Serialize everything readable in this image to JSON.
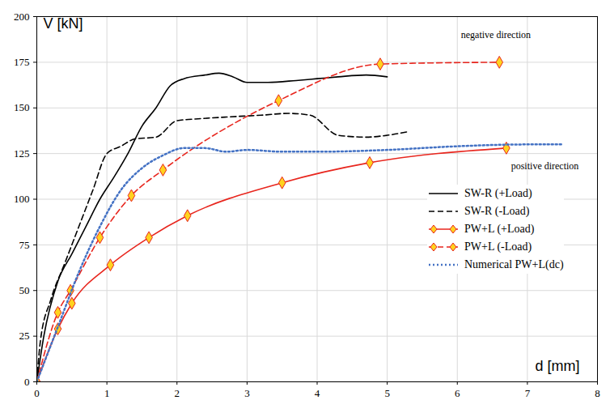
{
  "chart_data": {
    "type": "line",
    "x_label": "d [mm]",
    "y_label": "V [kN]",
    "xlim": [
      0,
      8
    ],
    "xticks": [
      0,
      1,
      2,
      3,
      4,
      5,
      6,
      7,
      8
    ],
    "ylim": [
      0,
      200
    ],
    "yticks": [
      0,
      25,
      50,
      75,
      100,
      125,
      150,
      175,
      200
    ],
    "grid": true,
    "legend": "right",
    "annotations": [
      {
        "text": "negative direction",
        "x": 6.55,
        "y": 190
      },
      {
        "text": "positive direction",
        "x": 7.25,
        "y": 118
      }
    ],
    "series": [
      {
        "name": "SW-R (+Load)",
        "color": "#000000",
        "line_style": "solid",
        "x": [
          0,
          0.1,
          0.3,
          0.5,
          0.7,
          0.9,
          1.1,
          1.3,
          1.5,
          1.7,
          1.9,
          2.1,
          2.4,
          2.6,
          2.8,
          3.0,
          3.3,
          3.7,
          4.0,
          4.3,
          4.7,
          5.0
        ],
        "values": [
          0,
          25,
          55,
          70,
          85,
          100,
          112,
          125,
          140,
          150,
          162,
          166,
          168,
          169,
          167,
          164,
          164,
          165,
          166,
          167,
          168,
          167
        ]
      },
      {
        "name": "SW-R (-Load)",
        "color": "#000000",
        "line_style": "dashed",
        "x": [
          0,
          0.05,
          0.2,
          0.4,
          0.6,
          0.8,
          1.0,
          1.2,
          1.4,
          1.7,
          2.0,
          2.3,
          2.7,
          3.2,
          3.6,
          3.9,
          4.3,
          4.7,
          5.0,
          5.3
        ],
        "values": [
          0,
          22,
          45,
          65,
          85,
          105,
          125,
          129,
          133,
          134,
          143,
          144,
          145,
          146,
          147,
          146,
          135,
          134,
          135,
          137
        ]
      },
      {
        "name": "PW+L (+Load)",
        "color": "#e8261e",
        "line_style": "solid",
        "marker": "diamond",
        "x": [
          0,
          0.3,
          0.5,
          1.05,
          1.6,
          2.15,
          3.5,
          4.75,
          6.7
        ],
        "values": [
          0,
          29,
          43,
          64,
          79,
          91,
          109,
          120,
          128
        ]
      },
      {
        "name": "PW+L (-Load)",
        "color": "#e8261e",
        "line_style": "dashed",
        "marker": "diamond",
        "x": [
          0,
          0.3,
          0.48,
          0.9,
          1.35,
          1.8,
          3.45,
          4.9,
          6.6
        ],
        "values": [
          0,
          38,
          50,
          79,
          102,
          116,
          154,
          174,
          175
        ]
      },
      {
        "name": "Numerical PW+L(dc)",
        "color": "#4472c4",
        "line_style": "dotted",
        "x": [
          0,
          0.3,
          0.6,
          0.9,
          1.2,
          1.5,
          1.8,
          2.1,
          2.4,
          2.7,
          3.0,
          3.5,
          4.0,
          5.0,
          6.0,
          7.0,
          7.5
        ],
        "values": [
          0,
          30,
          60,
          85,
          105,
          117,
          124,
          128,
          128,
          126,
          127,
          126,
          126,
          127,
          129,
          130,
          130
        ]
      }
    ]
  }
}
